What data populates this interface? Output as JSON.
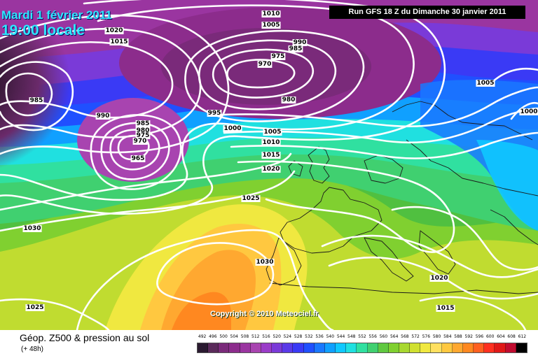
{
  "header": {
    "date": "Mardi 1 février 2011",
    "local_time": "19:00 locale",
    "run_info": "Run GFS 18 Z du Dimanche 30 janvier 2011",
    "copyright": "Copyright © 2010 Meteociel.fr"
  },
  "footer": {
    "title": "Géop. Z500 & pression au sol",
    "forecast_hour": "(+ 48h)"
  },
  "legend": {
    "values": [
      492,
      496,
      500,
      504,
      508,
      512,
      516,
      520,
      524,
      528,
      532,
      536,
      540,
      544,
      548,
      552,
      556,
      560,
      564,
      568,
      572,
      576,
      580,
      584,
      588,
      592,
      596,
      600,
      604,
      608,
      612
    ],
    "colors": [
      "#2a1a30",
      "#5a2a5a",
      "#7a2a7a",
      "#8c2c8c",
      "#9a35a0",
      "#a844b0",
      "#9a3cc8",
      "#7a3ad8",
      "#5a3ae8",
      "#3a3af5",
      "#2050ff",
      "#1a78ff",
      "#10a0ff",
      "#10c8ff",
      "#20e0e0",
      "#30e0a0",
      "#40d070",
      "#60c840",
      "#80d030",
      "#a8d830",
      "#d0e030",
      "#f0e840",
      "#ffe060",
      "#ffc840",
      "#ffa830",
      "#ff8820",
      "#ff6020",
      "#ff3020",
      "#e01818",
      "#c00c30",
      "#000000"
    ]
  },
  "isobars": [
    {
      "label": "1010"
    },
    {
      "label": "1005"
    },
    {
      "label": "990"
    },
    {
      "label": "985"
    },
    {
      "label": "975"
    },
    {
      "label": "970"
    },
    {
      "label": "980"
    },
    {
      "label": "1005"
    },
    {
      "label": "1000"
    },
    {
      "label": "985"
    },
    {
      "label": "990"
    },
    {
      "label": "995"
    },
    {
      "label": "1000"
    },
    {
      "label": "1005"
    },
    {
      "label": "1010"
    },
    {
      "label": "1015"
    },
    {
      "label": "1020"
    },
    {
      "label": "985"
    },
    {
      "label": "980"
    },
    {
      "label": "975"
    },
    {
      "label": "970"
    },
    {
      "label": "965"
    },
    {
      "label": "1020"
    },
    {
      "label": "1015"
    },
    {
      "label": "1025"
    },
    {
      "label": "1030"
    },
    {
      "label": "1030"
    },
    {
      "label": "1025"
    },
    {
      "label": "1020"
    },
    {
      "label": "1015"
    }
  ],
  "colors": {
    "title_cyan": "#2ee8ff",
    "contour_white": "#ffffff",
    "run_box_bg": "#000000"
  }
}
